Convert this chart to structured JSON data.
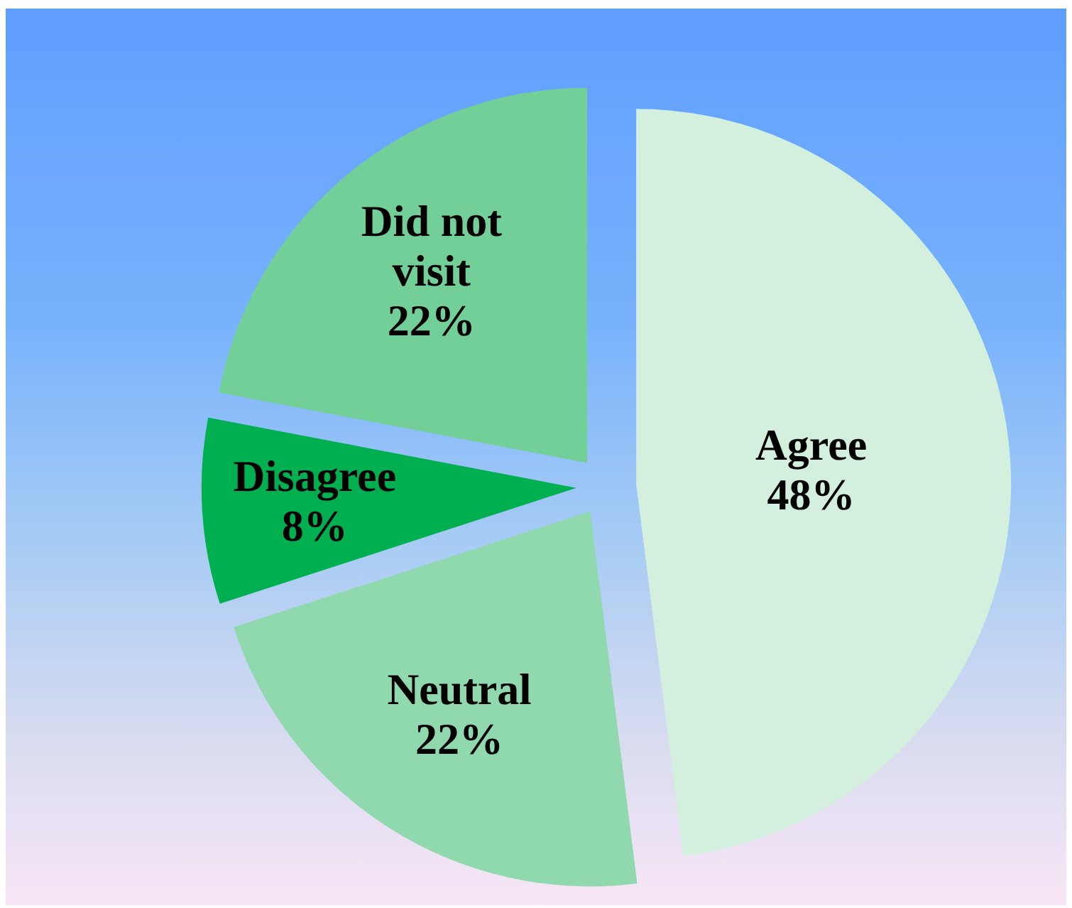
{
  "chart_data": {
    "type": "pie",
    "categories": [
      "Agree",
      "Neutral",
      "Disagree",
      "Did not visit"
    ],
    "values": [
      48,
      22,
      8,
      22
    ],
    "colors": [
      "#d2f0dd",
      "#90d8ae",
      "#00b050",
      "#72cf98"
    ],
    "value_labels": [
      "48%",
      "22%",
      "8%",
      "22%"
    ],
    "legend": false
  }
}
